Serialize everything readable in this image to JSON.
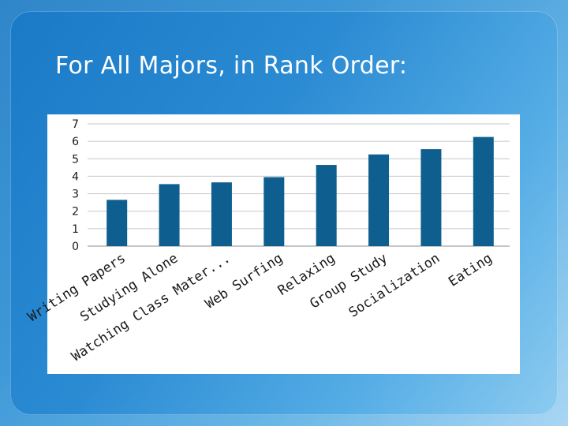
{
  "title": "For All Majors, in Rank Order:",
  "chart_data": {
    "type": "bar",
    "categories": [
      "Writing Papers",
      "Studying Alone",
      "Watching Class Mater...",
      "Web Surfing",
      "Relaxing",
      "Group Study",
      "Socialization",
      "Eating"
    ],
    "values": [
      2.65,
      3.55,
      3.65,
      3.95,
      4.65,
      5.25,
      5.55,
      6.25
    ],
    "ylim": [
      0,
      7
    ],
    "yticks": [
      0,
      1,
      2,
      3,
      4,
      5,
      6,
      7
    ],
    "xlabel": "",
    "ylabel": "",
    "grid": true,
    "bar_color": "#0e5f8f",
    "grid_color": "#c7c7c7"
  }
}
